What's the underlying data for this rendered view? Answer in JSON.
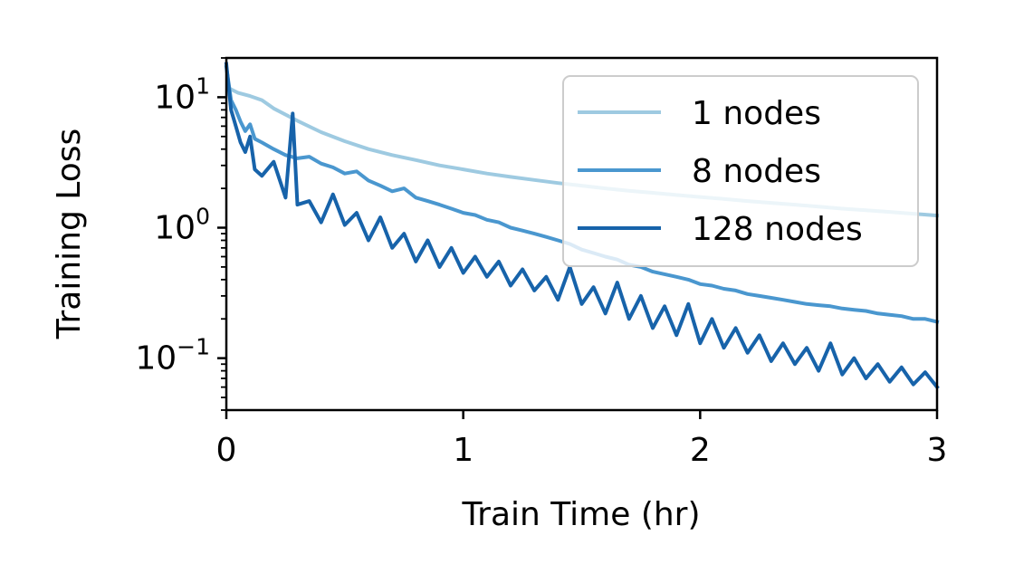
{
  "chart_data": {
    "type": "line",
    "title": "",
    "xlabel": "Train Time (hr)",
    "ylabel": "Training Loss",
    "xlim": [
      0,
      3
    ],
    "ylim": [
      0.04,
      20
    ],
    "yscale": "log",
    "grid": false,
    "legend_position": "top-right",
    "x_ticks": [
      {
        "value": 0,
        "label": "0"
      },
      {
        "value": 1,
        "label": "1"
      },
      {
        "value": 2,
        "label": "2"
      },
      {
        "value": 3,
        "label": "3"
      }
    ],
    "y_ticks": [
      {
        "value": 10,
        "base": "10",
        "exp": "1"
      },
      {
        "value": 1,
        "base": "10",
        "exp": "0"
      },
      {
        "value": 0.1,
        "base": "10",
        "exp": "−1"
      }
    ],
    "series": [
      {
        "name": "1 nodes",
        "color": "#9ecae1",
        "x": [
          0.02,
          0.05,
          0.1,
          0.15,
          0.2,
          0.3,
          0.4,
          0.5,
          0.6,
          0.7,
          0.8,
          0.9,
          1.0,
          1.1,
          1.2,
          1.3,
          1.4,
          1.5,
          1.6,
          1.7,
          1.8,
          1.9,
          2.0,
          2.1,
          2.2,
          2.3,
          2.4,
          2.5,
          2.6,
          2.7,
          2.8,
          2.9,
          3.0
        ],
        "y": [
          11.5,
          10.8,
          10.2,
          9.5,
          8.2,
          6.6,
          5.4,
          4.6,
          4.0,
          3.6,
          3.3,
          3.0,
          2.8,
          2.6,
          2.45,
          2.32,
          2.2,
          2.1,
          2.0,
          1.92,
          1.85,
          1.78,
          1.72,
          1.66,
          1.6,
          1.55,
          1.5,
          1.45,
          1.4,
          1.36,
          1.32,
          1.28,
          1.24
        ]
      },
      {
        "name": "8 nodes",
        "color": "#4a97cf",
        "x": [
          0.0,
          0.02,
          0.04,
          0.06,
          0.08,
          0.1,
          0.12,
          0.15,
          0.2,
          0.25,
          0.3,
          0.35,
          0.4,
          0.45,
          0.5,
          0.55,
          0.6,
          0.65,
          0.7,
          0.75,
          0.8,
          0.85,
          0.9,
          0.95,
          1.0,
          1.05,
          1.1,
          1.15,
          1.2,
          1.25,
          1.3,
          1.35,
          1.4,
          1.45,
          1.5,
          1.55,
          1.6,
          1.65,
          1.7,
          1.75,
          1.8,
          1.85,
          1.9,
          1.95,
          2.0,
          2.05,
          2.1,
          2.15,
          2.2,
          2.25,
          2.3,
          2.35,
          2.4,
          2.45,
          2.5,
          2.55,
          2.6,
          2.65,
          2.7,
          2.75,
          2.8,
          2.85,
          2.9,
          2.95,
          3.0
        ],
        "y": [
          17.0,
          9.5,
          8.0,
          6.5,
          5.5,
          6.2,
          4.8,
          4.5,
          4.0,
          3.6,
          3.4,
          3.5,
          3.1,
          2.9,
          2.6,
          2.7,
          2.3,
          2.1,
          1.9,
          2.0,
          1.7,
          1.6,
          1.5,
          1.4,
          1.3,
          1.25,
          1.15,
          1.1,
          1.0,
          0.95,
          0.9,
          0.85,
          0.8,
          0.75,
          0.68,
          0.64,
          0.6,
          0.57,
          0.52,
          0.5,
          0.46,
          0.44,
          0.42,
          0.4,
          0.37,
          0.36,
          0.34,
          0.33,
          0.31,
          0.3,
          0.29,
          0.28,
          0.27,
          0.26,
          0.255,
          0.25,
          0.24,
          0.235,
          0.23,
          0.22,
          0.215,
          0.21,
          0.2,
          0.2,
          0.19
        ]
      },
      {
        "name": "128 nodes",
        "color": "#1763aa",
        "x": [
          0.0,
          0.02,
          0.04,
          0.06,
          0.08,
          0.1,
          0.12,
          0.15,
          0.2,
          0.25,
          0.28,
          0.3,
          0.35,
          0.4,
          0.45,
          0.5,
          0.55,
          0.6,
          0.65,
          0.7,
          0.75,
          0.8,
          0.85,
          0.9,
          0.95,
          1.0,
          1.05,
          1.1,
          1.15,
          1.2,
          1.25,
          1.3,
          1.35,
          1.4,
          1.45,
          1.5,
          1.55,
          1.6,
          1.65,
          1.7,
          1.75,
          1.8,
          1.85,
          1.9,
          1.95,
          2.0,
          2.05,
          2.1,
          2.15,
          2.2,
          2.25,
          2.3,
          2.35,
          2.4,
          2.45,
          2.5,
          2.55,
          2.6,
          2.65,
          2.7,
          2.75,
          2.8,
          2.85,
          2.9,
          2.95,
          3.0
        ],
        "y": [
          18.0,
          8.0,
          6.0,
          4.5,
          3.8,
          5.0,
          2.8,
          2.5,
          3.2,
          1.7,
          7.5,
          1.5,
          1.6,
          1.1,
          1.8,
          1.05,
          1.3,
          0.8,
          1.2,
          0.7,
          0.9,
          0.55,
          0.8,
          0.5,
          0.7,
          0.45,
          0.6,
          0.42,
          0.55,
          0.36,
          0.48,
          0.33,
          0.42,
          0.28,
          0.5,
          0.26,
          0.35,
          0.22,
          0.38,
          0.2,
          0.3,
          0.17,
          0.25,
          0.15,
          0.26,
          0.13,
          0.2,
          0.12,
          0.17,
          0.11,
          0.15,
          0.095,
          0.13,
          0.09,
          0.12,
          0.08,
          0.13,
          0.075,
          0.1,
          0.07,
          0.09,
          0.066,
          0.085,
          0.063,
          0.078,
          0.06
        ]
      }
    ]
  }
}
